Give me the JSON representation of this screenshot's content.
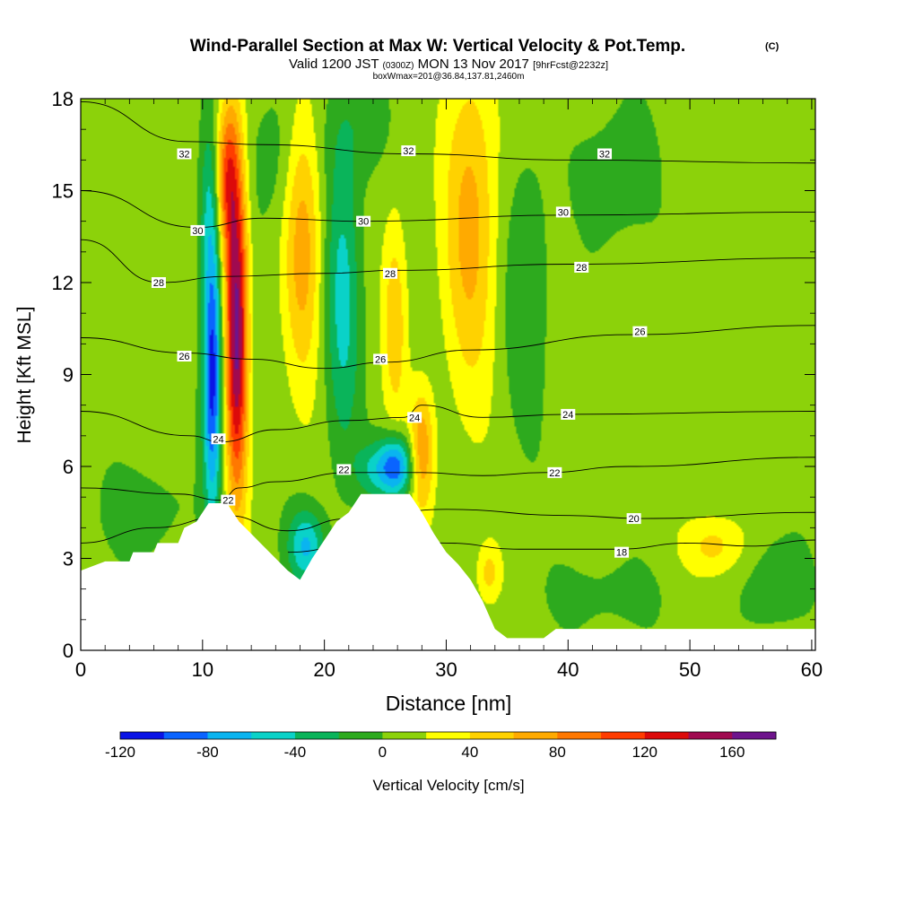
{
  "header": {
    "title": "Wind-Parallel Section at Max W: Vertical Velocity & Pot.Temp.",
    "copyright": "(C)",
    "valid_prefix": "Valid 1200 JST",
    "valid_zulu": "(0300Z)",
    "valid_date": "MON 13 Nov 2017",
    "forecast": "[9hrFcst@2232z]",
    "boxline": "boxWmax=201@36.84,137.81,2460m"
  },
  "colorbar": {
    "label": "Vertical Velocity [cm/s]",
    "tick_labels": [
      "-120",
      "-80",
      "-40",
      "0",
      "40",
      "80",
      "120",
      "160"
    ],
    "colors": [
      "#0a14e6",
      "#0a64ff",
      "#0ab4f0",
      "#0ad2c8",
      "#0ab45a",
      "#2daa1e",
      "#8cd20a",
      "#ffff00",
      "#ffd200",
      "#ffaa00",
      "#ff7800",
      "#ff3c00",
      "#dc0a0a",
      "#a00a50",
      "#6e148c"
    ]
  },
  "chart_data": {
    "type": "heatmap",
    "title": "Wind-Parallel Section at Max W: Vertical Velocity & Pot.Temp.",
    "xlabel": "Distance [nm]",
    "ylabel": "Height [Kft MSL]",
    "xlim": [
      0,
      60.3
    ],
    "ylim": [
      0,
      18
    ],
    "x_ticks": [
      0,
      10,
      20,
      30,
      40,
      50,
      60
    ],
    "y_ticks": [
      0,
      3,
      6,
      9,
      12,
      15,
      18
    ],
    "velocity_colorbar_range": [
      -120,
      180
    ],
    "velocity_units": "cm/s",
    "shaded_field": "Vertical Velocity [cm/s]",
    "contour_field": "Potential temperature",
    "terrain": [
      {
        "x": 0,
        "h": 2.6
      },
      {
        "x": 2,
        "h": 2.9
      },
      {
        "x": 4,
        "h": 2.9
      },
      {
        "x": 4.3,
        "h": 3.2
      },
      {
        "x": 6,
        "h": 3.2
      },
      {
        "x": 6.3,
        "h": 3.5
      },
      {
        "x": 8,
        "h": 3.5
      },
      {
        "x": 8.5,
        "h": 4.0
      },
      {
        "x": 9.5,
        "h": 4.2
      },
      {
        "x": 10.5,
        "h": 4.8
      },
      {
        "x": 12,
        "h": 4.8
      },
      {
        "x": 13,
        "h": 4.2
      },
      {
        "x": 14,
        "h": 3.8
      },
      {
        "x": 15,
        "h": 3.4
      },
      {
        "x": 16,
        "h": 3.0
      },
      {
        "x": 17,
        "h": 2.6
      },
      {
        "x": 18,
        "h": 2.3
      },
      {
        "x": 19,
        "h": 3.0
      },
      {
        "x": 20,
        "h": 3.6
      },
      {
        "x": 21,
        "h": 4.2
      },
      {
        "x": 22,
        "h": 4.5
      },
      {
        "x": 23,
        "h": 5.1
      },
      {
        "x": 27,
        "h": 5.1
      },
      {
        "x": 28,
        "h": 4.5
      },
      {
        "x": 29,
        "h": 3.8
      },
      {
        "x": 30,
        "h": 3.2
      },
      {
        "x": 31,
        "h": 2.8
      },
      {
        "x": 32,
        "h": 2.3
      },
      {
        "x": 33,
        "h": 1.6
      },
      {
        "x": 34,
        "h": 0.7
      },
      {
        "x": 35,
        "h": 0.4
      },
      {
        "x": 38,
        "h": 0.4
      },
      {
        "x": 39,
        "h": 0.7
      },
      {
        "x": 60.3,
        "h": 0.7
      }
    ],
    "isentropes": [
      {
        "theta": 32,
        "points": [
          [
            0,
            17.9
          ],
          [
            8.7,
            16.6
          ],
          [
            15,
            16.5
          ],
          [
            27,
            16.2
          ],
          [
            40,
            16.0
          ],
          [
            60.3,
            15.9
          ]
        ]
      },
      {
        "theta": 30,
        "points": [
          [
            0,
            15.0
          ],
          [
            9.5,
            13.8
          ],
          [
            15,
            14.1
          ],
          [
            23,
            14.0
          ],
          [
            40,
            14.2
          ],
          [
            60.3,
            14.3
          ]
        ]
      },
      {
        "theta": 28,
        "points": [
          [
            0,
            13.4
          ],
          [
            6.5,
            12.0
          ],
          [
            12,
            12.2
          ],
          [
            20,
            12.3
          ],
          [
            26,
            12.4
          ],
          [
            40,
            12.6
          ],
          [
            60.3,
            12.8
          ]
        ]
      },
      {
        "theta": 26,
        "points": [
          [
            0,
            10.2
          ],
          [
            8.7,
            9.7
          ],
          [
            14,
            9.5
          ],
          [
            20,
            9.2
          ],
          [
            25,
            9.4
          ],
          [
            32,
            9.8
          ],
          [
            45,
            10.3
          ],
          [
            60.3,
            10.6
          ]
        ]
      },
      {
        "theta": 24,
        "points": [
          [
            0,
            7.8
          ],
          [
            9,
            7.0
          ],
          [
            11.5,
            6.8
          ],
          [
            16,
            7.2
          ],
          [
            22,
            7.5
          ],
          [
            26.5,
            7.6
          ],
          [
            28,
            8.0
          ],
          [
            33,
            7.6
          ],
          [
            40,
            7.7
          ],
          [
            60.3,
            7.8
          ]
        ]
      },
      {
        "theta": 22,
        "points": [
          [
            0,
            5.3
          ],
          [
            8,
            5.1
          ],
          [
            11.5,
            4.9
          ],
          [
            13,
            5.3
          ],
          [
            16,
            5.5
          ],
          [
            22,
            5.8
          ],
          [
            28,
            5.8
          ],
          [
            33,
            5.7
          ],
          [
            38,
            5.8
          ],
          [
            45,
            6.0
          ],
          [
            60.3,
            6.3
          ]
        ]
      },
      {
        "theta": 20,
        "points": [
          [
            0,
            3.5
          ],
          [
            6,
            4.0
          ],
          [
            12,
            4.4
          ],
          [
            17,
            3.9
          ],
          [
            22,
            4.3
          ],
          [
            30,
            4.6
          ],
          [
            40,
            4.4
          ],
          [
            46,
            4.3
          ],
          [
            60.3,
            4.5
          ]
        ]
      },
      {
        "theta": 18,
        "points": [
          [
            17,
            3.2
          ],
          [
            24,
            3.6
          ],
          [
            30,
            3.5
          ],
          [
            36,
            3.3
          ],
          [
            44,
            3.3
          ],
          [
            50,
            3.5
          ],
          [
            55,
            3.4
          ],
          [
            60.3,
            3.6
          ]
        ]
      }
    ],
    "contour_labels": [
      {
        "text": "32",
        "x": 8.5,
        "y": 16.2
      },
      {
        "text": "32",
        "x": 26.9,
        "y": 16.3
      },
      {
        "text": "32",
        "x": 43.0,
        "y": 16.2
      },
      {
        "text": "30",
        "x": 9.6,
        "y": 13.7
      },
      {
        "text": "30",
        "x": 23.2,
        "y": 14.0
      },
      {
        "text": "30",
        "x": 39.6,
        "y": 14.3
      },
      {
        "text": "28",
        "x": 6.4,
        "y": 12.0
      },
      {
        "text": "28",
        "x": 25.4,
        "y": 12.3
      },
      {
        "text": "28",
        "x": 41.1,
        "y": 12.5
      },
      {
        "text": "26",
        "x": 8.5,
        "y": 9.6
      },
      {
        "text": "26",
        "x": 24.6,
        "y": 9.5
      },
      {
        "text": "26",
        "x": 45.9,
        "y": 10.4
      },
      {
        "text": "24",
        "x": 11.3,
        "y": 6.9
      },
      {
        "text": "24",
        "x": 27.4,
        "y": 7.6
      },
      {
        "text": "24",
        "x": 40.0,
        "y": 7.7
      },
      {
        "text": "22",
        "x": 12.1,
        "y": 4.9
      },
      {
        "text": "22",
        "x": 21.6,
        "y": 5.9
      },
      {
        "text": "22",
        "x": 38.9,
        "y": 5.8
      },
      {
        "text": "20",
        "x": 45.4,
        "y": 4.3
      },
      {
        "text": "18",
        "x": 44.4,
        "y": 3.2
      }
    ],
    "velocity_features": [
      {
        "name": "strong updraft",
        "x": 12.8,
        "y": 10.5,
        "sx": 0.9,
        "sy": 5.5,
        "value": 160
      },
      {
        "name": "updraft upper",
        "x": 12.0,
        "y": 15.5,
        "sx": 0.9,
        "sy": 2.5,
        "value": 90
      },
      {
        "name": "downdraft",
        "x": 10.8,
        "y": 9.0,
        "sx": 0.75,
        "sy": 4.5,
        "value": -120
      },
      {
        "name": "downdraft upper",
        "x": 10.5,
        "y": 14.5,
        "sx": 0.8,
        "sy": 3.0,
        "value": -40
      },
      {
        "name": "updraft",
        "x": 18.2,
        "y": 13.5,
        "sx": 1.5,
        "sy": 4.5,
        "value": 65
      },
      {
        "name": "downdraft",
        "x": 21.5,
        "y": 11.5,
        "sx": 1.4,
        "sy": 5.0,
        "value": -55
      },
      {
        "name": "updraft",
        "x": 25.8,
        "y": 10.8,
        "sx": 1.0,
        "sy": 3.5,
        "value": 45
      },
      {
        "name": "updraft",
        "x": 28.0,
        "y": 6.5,
        "sx": 1.0,
        "sy": 2.0,
        "value": 70
      },
      {
        "name": "downdraft",
        "x": 25.9,
        "y": 6.0,
        "sx": 1.4,
        "sy": 1.0,
        "value": -100
      },
      {
        "name": "downdraft",
        "x": 24.0,
        "y": 5.9,
        "sx": 1.6,
        "sy": 0.9,
        "value": -40
      },
      {
        "name": "updraft",
        "x": 32.0,
        "y": 14.0,
        "sx": 2.2,
        "sy": 5.5,
        "value": 60
      },
      {
        "name": "downdraft",
        "x": 18.5,
        "y": 3.4,
        "sx": 1.5,
        "sy": 1.2,
        "value": -70
      },
      {
        "name": "updraft",
        "x": 52.0,
        "y": 3.4,
        "sx": 2.5,
        "sy": 1.0,
        "value": 40
      },
      {
        "name": "updraft",
        "x": 33.5,
        "y": 2.5,
        "sx": 1.0,
        "sy": 1.0,
        "value": 40
      },
      {
        "name": "weak sink",
        "x": 16.0,
        "y": 16.0,
        "sx": 2.5,
        "sy": 2.5,
        "value": -20
      },
      {
        "name": "weak sink",
        "x": 22.5,
        "y": 17.0,
        "sx": 2.5,
        "sy": 2.0,
        "value": -20
      },
      {
        "name": "weak sink",
        "x": 36.5,
        "y": 12.0,
        "sx": 2.0,
        "sy": 4.5,
        "value": -25
      },
      {
        "name": "weak sink",
        "x": 44.0,
        "y": 15.5,
        "sx": 3.0,
        "sy": 2.5,
        "value": -20
      },
      {
        "name": "weak sink",
        "x": 5.0,
        "y": 4.5,
        "sx": 3.5,
        "sy": 1.5,
        "value": -20
      },
      {
        "name": "weak sink",
        "x": 43.0,
        "y": 1.8,
        "sx": 5.0,
        "sy": 1.2,
        "value": -15
      },
      {
        "name": "weak sink",
        "x": 57.0,
        "y": 2.2,
        "sx": 2.5,
        "sy": 1.5,
        "value": -25
      }
    ]
  }
}
